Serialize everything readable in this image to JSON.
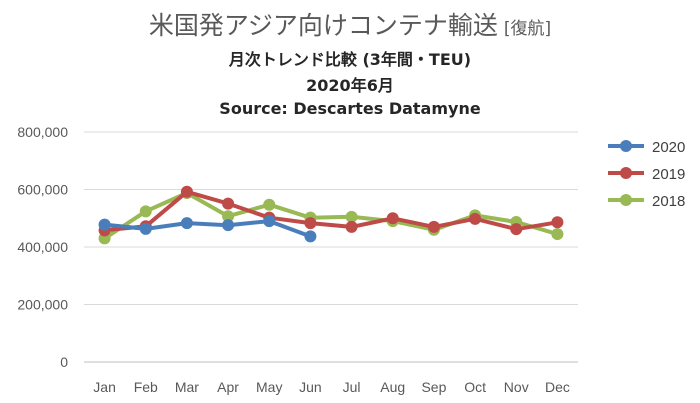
{
  "title": {
    "main": "米国発アジア向けコンテナ輸送",
    "bracket": "[復航]",
    "line2": "月次トレンド比較 (3年間・TEU)",
    "line3": "2020年6月",
    "line4": "Source: Descartes Datamyne"
  },
  "chart_data": {
    "type": "line",
    "categories": [
      "Jan",
      "Feb",
      "Mar",
      "Apr",
      "May",
      "Jun",
      "Jul",
      "Aug",
      "Sep",
      "Oct",
      "Nov",
      "Dec"
    ],
    "ylim": [
      0,
      800000
    ],
    "yticks": [
      0,
      200000,
      400000,
      600000,
      800000
    ],
    "ytick_labels": [
      "0",
      "200,000",
      "400,000",
      "600,000",
      "800,000"
    ],
    "grid": true,
    "legend_position": "right",
    "series": [
      {
        "name": "2020",
        "color": "#4a7ebb",
        "values": [
          478000,
          463000,
          483000,
          476000,
          490000,
          437000,
          null,
          null,
          null,
          null,
          null,
          null
        ]
      },
      {
        "name": "2019",
        "color": "#be4b48",
        "values": [
          458000,
          472000,
          592000,
          551000,
          502000,
          483000,
          470000,
          500000,
          470000,
          498000,
          462000,
          486000
        ]
      },
      {
        "name": "2018",
        "color": "#98b954",
        "values": [
          430000,
          524000,
          588000,
          507000,
          547000,
          502000,
          505000,
          490000,
          460000,
          510000,
          487000,
          445000
        ]
      }
    ]
  }
}
